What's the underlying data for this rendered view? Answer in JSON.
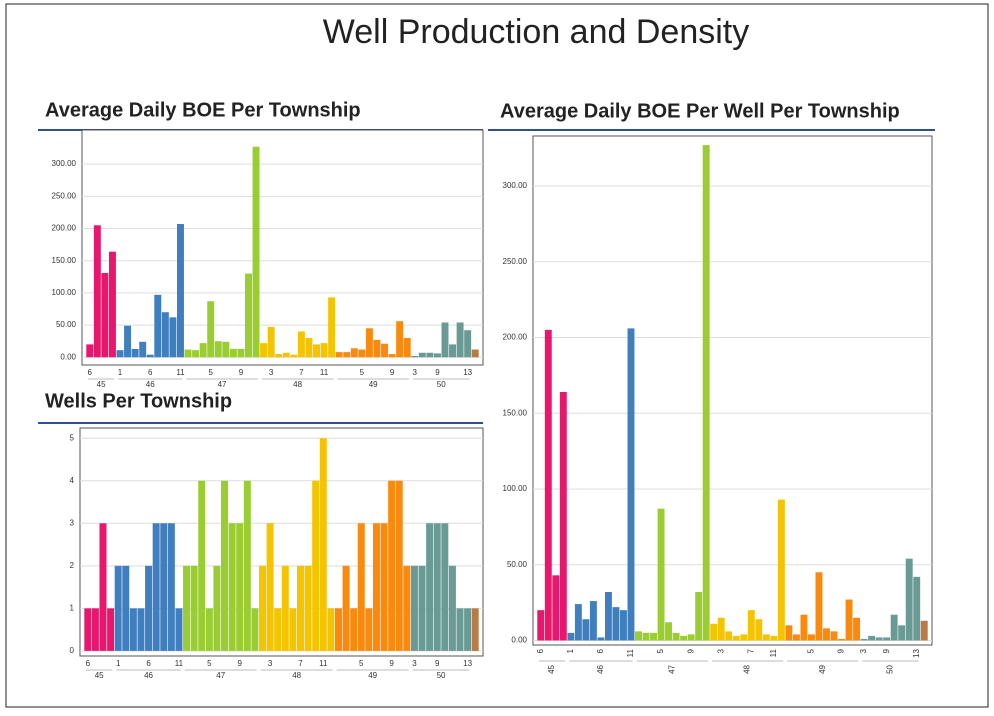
{
  "title": "Well Production and Density",
  "chart_data": [
    {
      "type": "bar",
      "title": "Average Daily BOE Per Township",
      "ylim": [
        -12,
        353
      ],
      "grid": true,
      "yticks": [
        {
          "value": 0,
          "label": "0.00"
        },
        {
          "value": 50,
          "label": "50.00"
        },
        {
          "value": 100,
          "label": "100.00"
        },
        {
          "value": 150,
          "label": "150.00"
        },
        {
          "value": 200,
          "label": "200.00"
        },
        {
          "value": 250,
          "label": "250.00"
        },
        {
          "value": 300,
          "label": "300.00"
        }
      ],
      "groups": [
        {
          "name": "45",
          "color": "#e8176e",
          "categories": [
            "6",
            null,
            null,
            null
          ],
          "values": [
            20,
            205,
            131,
            164
          ]
        },
        {
          "name": "46",
          "color": "#3f7fbf",
          "categories": [
            "1",
            null,
            null,
            null,
            "6",
            null,
            null,
            null,
            "11"
          ],
          "values": [
            11,
            49,
            13,
            24,
            4,
            97,
            70,
            62,
            207
          ]
        },
        {
          "name": "47",
          "color": "#9acd32",
          "categories": [
            null,
            null,
            null,
            "5",
            null,
            null,
            null,
            "9",
            null,
            null
          ],
          "values": [
            12,
            11,
            22,
            87,
            25,
            24,
            13,
            13,
            130,
            327
          ]
        },
        {
          "name": "48",
          "color": "#f5c400",
          "categories": [
            null,
            "3",
            null,
            null,
            null,
            "7",
            null,
            null,
            "11",
            null
          ],
          "values": [
            22,
            47,
            5,
            7,
            4,
            40,
            30,
            20,
            22,
            93
          ]
        },
        {
          "name": "49",
          "color": "#f98a0e",
          "categories": [
            null,
            null,
            null,
            "5",
            null,
            null,
            null,
            "9",
            null,
            null
          ],
          "values": [
            8,
            8,
            14,
            12,
            45,
            27,
            21,
            5,
            56,
            30
          ]
        },
        {
          "name": "50",
          "color": "#6a9a94",
          "categories": [
            "3",
            null,
            null,
            "9",
            null,
            null,
            null,
            "13"
          ],
          "values": [
            2,
            7,
            7,
            6,
            54,
            20,
            54,
            42
          ]
        },
        {
          "color": "#b97a44",
          "categories": [
            null
          ],
          "values": [
            12
          ]
        }
      ]
    },
    {
      "type": "bar",
      "title": "Wells Per Township",
      "ylim": [
        -0.12,
        5.24
      ],
      "grid": true,
      "yticks": [
        0,
        1,
        2,
        3,
        4,
        5
      ],
      "groups": [
        {
          "name": "45",
          "color": "#e8176e",
          "categories": [
            "6",
            null,
            null,
            null
          ],
          "values": [
            1,
            1,
            3,
            1
          ]
        },
        {
          "name": "46",
          "color": "#3f7fbf",
          "categories": [
            "1",
            null,
            null,
            null,
            "6",
            null,
            null,
            null,
            "11"
          ],
          "values": [
            2,
            2,
            1,
            1,
            2,
            3,
            3,
            3,
            1
          ]
        },
        {
          "name": "47",
          "color": "#9acd32",
          "categories": [
            null,
            null,
            null,
            "5",
            null,
            null,
            null,
            "9",
            null,
            null
          ],
          "values": [
            2,
            2,
            4,
            1,
            2,
            4,
            3,
            3,
            4,
            1
          ]
        },
        {
          "name": "48",
          "color": "#f5c400",
          "categories": [
            null,
            "3",
            null,
            null,
            null,
            "7",
            null,
            null,
            "11",
            null
          ],
          "values": [
            2,
            3,
            1,
            2,
            1,
            2,
            2,
            4,
            5,
            1
          ]
        },
        {
          "name": "49",
          "color": "#f98a0e",
          "categories": [
            null,
            null,
            null,
            "5",
            null,
            null,
            null,
            "9",
            null,
            null
          ],
          "values": [
            1,
            2,
            1,
            3,
            1,
            3,
            3,
            4,
            4,
            2
          ]
        },
        {
          "name": "50",
          "color": "#6a9a94",
          "categories": [
            "3",
            null,
            null,
            "9",
            null,
            null,
            null,
            "13"
          ],
          "values": [
            2,
            2,
            3,
            3,
            3,
            2,
            1,
            1
          ]
        },
        {
          "color": "#b97a44",
          "categories": [
            null
          ],
          "values": [
            1
          ]
        }
      ]
    },
    {
      "type": "bar",
      "title": "Average Daily BOE Per Well Per Township",
      "ylim": [
        -3,
        333
      ],
      "grid": true,
      "yticks": [
        {
          "value": 0,
          "label": "0.00"
        },
        {
          "value": 50,
          "label": "50.00"
        },
        {
          "value": 100,
          "label": "100.00"
        },
        {
          "value": 150,
          "label": "150.00"
        },
        {
          "value": 200,
          "label": "200.00"
        },
        {
          "value": 250,
          "label": "250.00"
        },
        {
          "value": 300,
          "label": "300.00"
        }
      ],
      "groups": [
        {
          "name": "45",
          "color": "#e8176e",
          "categories": [
            "6",
            null,
            null,
            null
          ],
          "values": [
            20,
            205,
            43,
            164
          ]
        },
        {
          "name": "46",
          "color": "#3f7fbf",
          "categories": [
            "1",
            null,
            null,
            null,
            "6",
            null,
            null,
            null,
            "11"
          ],
          "values": [
            5,
            24,
            14,
            26,
            2,
            32,
            22,
            20,
            206
          ]
        },
        {
          "name": "47",
          "color": "#9acd32",
          "categories": [
            null,
            null,
            null,
            "5",
            null,
            null,
            null,
            "9",
            null,
            null
          ],
          "values": [
            6,
            5,
            5,
            87,
            12,
            5,
            3,
            4,
            32,
            327
          ]
        },
        {
          "name": "48",
          "color": "#f5c400",
          "categories": [
            null,
            "3",
            null,
            null,
            null,
            "7",
            null,
            null,
            "11",
            null
          ],
          "values": [
            11,
            15,
            6,
            3,
            4,
            20,
            14,
            4,
            3,
            93
          ]
        },
        {
          "name": "49",
          "color": "#f98a0e",
          "categories": [
            null,
            null,
            null,
            "5",
            null,
            null,
            null,
            "9",
            null,
            null
          ],
          "values": [
            10,
            4,
            17,
            4,
            45,
            8,
            6,
            1,
            27,
            15
          ]
        },
        {
          "name": "50",
          "color": "#6a9a94",
          "categories": [
            "3",
            null,
            null,
            "9",
            null,
            null,
            null,
            "13"
          ],
          "values": [
            1,
            3,
            2,
            2,
            17,
            10,
            54,
            42
          ]
        },
        {
          "color": "#b97a44",
          "categories": [
            null
          ],
          "values": [
            13
          ]
        }
      ]
    }
  ]
}
